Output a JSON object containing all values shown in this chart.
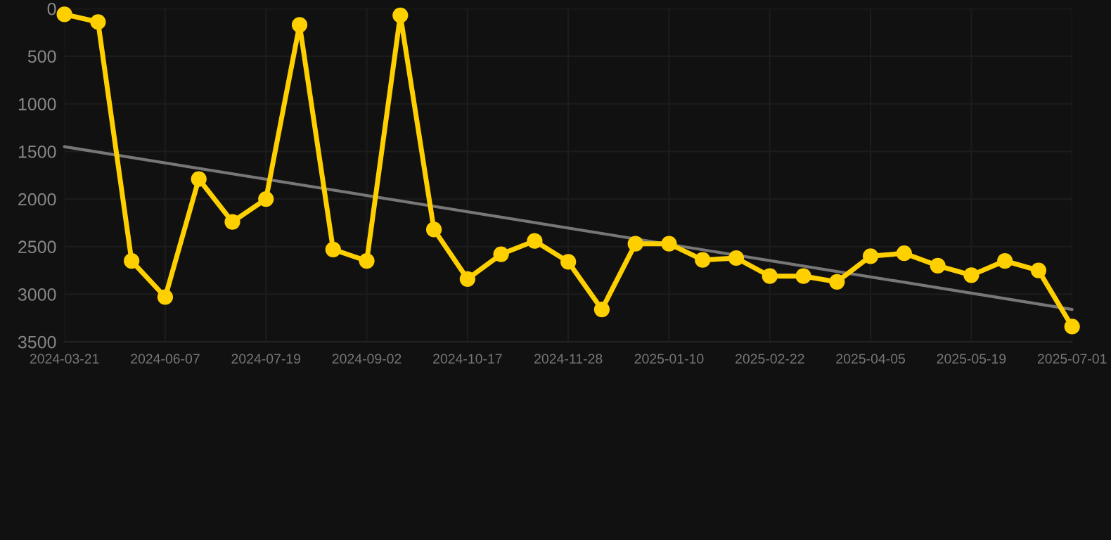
{
  "chart_data": {
    "type": "line",
    "categories": [
      "2024-03-21",
      null,
      null,
      "2024-06-07",
      null,
      null,
      "2024-07-19",
      null,
      null,
      "2024-09-02",
      null,
      null,
      "2024-10-17",
      null,
      null,
      "2024-11-28",
      null,
      null,
      "2025-01-10",
      null,
      null,
      "2025-02-22",
      null,
      null,
      "2025-04-05",
      null,
      null,
      "2025-05-19",
      null,
      null,
      "2025-07-01"
    ],
    "series": [
      {
        "color": "#ffd000",
        "marker": "circle",
        "values": [
          60,
          140,
          2650,
          3030,
          1790,
          2240,
          2000,
          170,
          2530,
          2650,
          70,
          2320,
          2840,
          2580,
          2440,
          2660,
          3160,
          2470,
          2470,
          2640,
          2620,
          2810,
          2810,
          2870,
          2600,
          2570,
          2700,
          2800,
          2650,
          2750,
          3340
        ]
      },
      {
        "color": "#777777",
        "marker": "none",
        "values": [
          1450,
          null,
          null,
          null,
          null,
          null,
          null,
          null,
          null,
          null,
          null,
          null,
          null,
          null,
          null,
          null,
          null,
          null,
          null,
          null,
          null,
          null,
          null,
          null,
          null,
          null,
          null,
          null,
          null,
          null,
          3160
        ]
      }
    ],
    "ylim": [
      3500,
      0
    ],
    "yticks": [
      0,
      500,
      1000,
      1500,
      2000,
      2500,
      3000,
      3500
    ],
    "grid": true
  }
}
